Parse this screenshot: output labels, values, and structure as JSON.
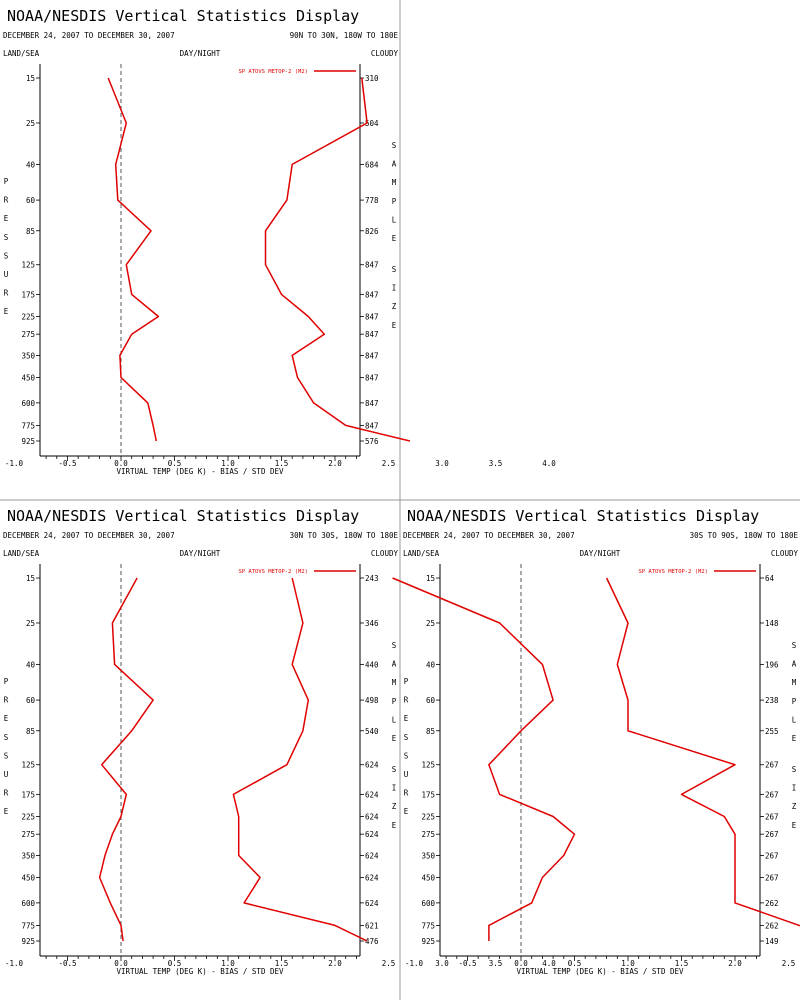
{
  "colors": {
    "series": "#e00000",
    "axis": "#000000",
    "zero_line": "#555555",
    "panel_divider": "#999999"
  },
  "chart_data": [
    {
      "type": "line",
      "title": "NOAA/NESDIS Vertical Statistics Display",
      "date_range": "DECEMBER 24, 2007 TO DECEMBER 30, 2007",
      "region": "90N TO 30N, 180W TO 180E",
      "land_sea": "LAND/SEA",
      "day_night": "DAY/NIGHT",
      "cloudy": "CLOUDY",
      "xlabel": "VIRTUAL TEMP (DEG K) - BIAS / STD DEV",
      "ylabel": "PRESSURE",
      "y2label": "SAMPLE SIZE",
      "legend": "SP ATOVS METOP-2 (M2)",
      "xlim": [
        -1.5,
        4.5
      ],
      "x_ticks": [
        "-1.0",
        "-0.5",
        "0.0",
        "0.5",
        "1.0",
        "1.5",
        "2.0",
        "2.5",
        "3.0",
        "3.5",
        "4.0"
      ],
      "pressure_levels": [
        "15",
        "25",
        "40",
        "60",
        "85",
        "125",
        "175",
        "225",
        "275",
        "350",
        "450",
        "600",
        "775",
        "925"
      ],
      "sample_size": [
        "310",
        "504",
        "684",
        "778",
        "826",
        "847",
        "847",
        "847",
        "847",
        "847",
        "847",
        "847",
        "847",
        "576"
      ],
      "series": [
        {
          "name": "bias",
          "values": [
            -0.12,
            0.05,
            -0.05,
            -0.03,
            0.28,
            0.05,
            0.1,
            0.35,
            0.1,
            -0.01,
            0.0,
            0.25,
            0.3,
            0.33
          ]
        },
        {
          "name": "std_dev",
          "values": [
            2.25,
            2.3,
            1.6,
            1.55,
            1.35,
            1.35,
            1.5,
            1.75,
            1.9,
            1.6,
            1.65,
            1.8,
            2.1,
            2.7
          ]
        }
      ]
    },
    {
      "type": "line",
      "title": "NOAA/NESDIS Vertical Statistics Display",
      "date_range": "DECEMBER 24, 2007 TO DECEMBER 30, 2007",
      "region": "30N TO 30S, 180W TO 180E",
      "land_sea": "LAND/SEA",
      "day_night": "DAY/NIGHT",
      "cloudy": "CLOUDY",
      "xlabel": "VIRTUAL TEMP (DEG K) - BIAS / STD DEV",
      "ylabel": "PRESSURE",
      "y2label": "SAMPLE SIZE",
      "legend": "SP ATOVS METOP-2 (M2)",
      "xlim": [
        -1.5,
        4.5
      ],
      "x_ticks": [
        "-1.0",
        "-0.5",
        "0.0",
        "0.5",
        "1.0",
        "1.5",
        "2.0",
        "2.5",
        "3.0",
        "3.5",
        "4.0"
      ],
      "pressure_levels": [
        "15",
        "25",
        "40",
        "60",
        "85",
        "125",
        "175",
        "225",
        "275",
        "350",
        "450",
        "600",
        "775",
        "925"
      ],
      "sample_size": [
        "243",
        "346",
        "440",
        "498",
        "540",
        "624",
        "624",
        "624",
        "624",
        "624",
        "624",
        "624",
        "621",
        "476"
      ],
      "series": [
        {
          "name": "bias",
          "values": [
            0.15,
            -0.08,
            -0.06,
            0.3,
            0.1,
            -0.18,
            0.05,
            0.0,
            -0.08,
            -0.15,
            -0.2,
            -0.1,
            0.0,
            0.02
          ]
        },
        {
          "name": "std_dev",
          "values": [
            1.6,
            1.7,
            1.6,
            1.75,
            1.7,
            1.55,
            1.05,
            1.1,
            1.1,
            1.1,
            1.3,
            1.15,
            2.0,
            2.3
          ]
        }
      ]
    },
    {
      "type": "line",
      "title": "NOAA/NESDIS Vertical Statistics Display",
      "date_range": "DECEMBER 24, 2007 TO DECEMBER 30, 2007",
      "region": "30S TO 90S, 180W TO 180E",
      "land_sea": "LAND/SEA",
      "day_night": "DAY/NIGHT",
      "cloudy": "CLOUDY",
      "xlabel": "VIRTUAL TEMP (DEG K) - BIAS / STD DEV",
      "ylabel": "PRESSURE",
      "y2label": "SAMPLE SIZE",
      "legend": "SP ATOVS METOP-2 (M2)",
      "xlim": [
        -1.5,
        4.5
      ],
      "x_ticks": [
        "-1.0",
        "-0.5",
        "0.0",
        "0.5",
        "1.0",
        "1.5",
        "2.0",
        "2.5",
        "3.0",
        "3.5",
        "4.0"
      ],
      "pressure_levels": [
        "15",
        "25",
        "40",
        "60",
        "85",
        "125",
        "175",
        "225",
        "275",
        "350",
        "450",
        "600",
        "775",
        "925"
      ],
      "sample_size": [
        "64",
        "148",
        "196",
        "238",
        "255",
        "267",
        "267",
        "267",
        "267",
        "267",
        "267",
        "262",
        "262",
        "149"
      ],
      "series": [
        {
          "name": "bias",
          "values": [
            -1.2,
            -0.2,
            0.2,
            0.3,
            0.0,
            -0.3,
            -0.2,
            0.3,
            0.5,
            0.4,
            0.2,
            0.1,
            -0.3,
            -0.3
          ]
        },
        {
          "name": "std_dev",
          "values": [
            0.8,
            1.0,
            0.9,
            1.0,
            1.0,
            2.0,
            1.5,
            1.9,
            2.0,
            2.0,
            2.0,
            2.0,
            2.6,
            3.0
          ]
        }
      ]
    }
  ]
}
